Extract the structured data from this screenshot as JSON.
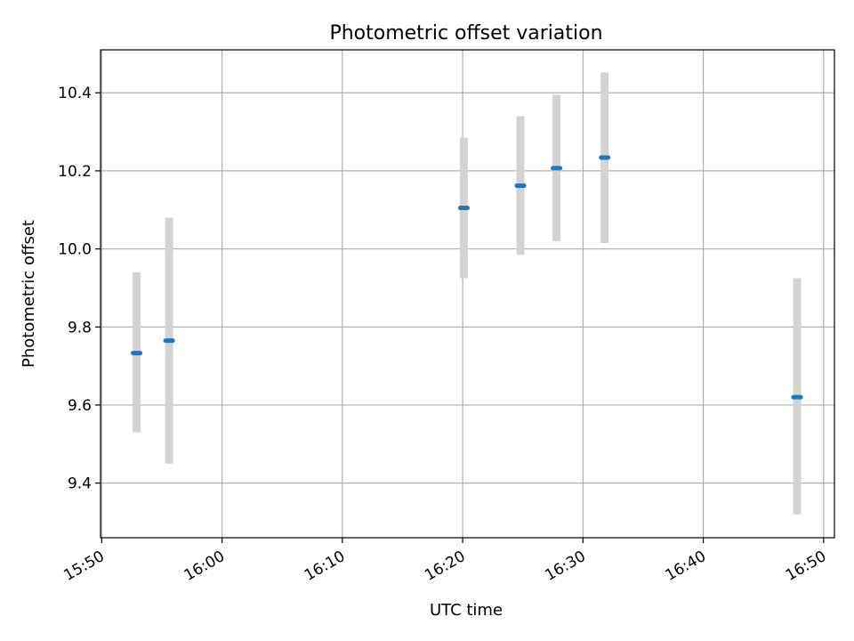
{
  "chart_data": {
    "type": "scatter",
    "title": "Photometric offset variation",
    "xlabel": "UTC time",
    "ylabel": "Photometric offset",
    "x_ticks": [
      "15:50",
      "16:00",
      "16:10",
      "16:20",
      "16:30",
      "16:40",
      "16:50"
    ],
    "y_ticks": [
      "9.4",
      "9.6",
      "9.8",
      "10.0",
      "10.2",
      "10.4"
    ],
    "xlim": [
      "15:49.9",
      "16:50.9"
    ],
    "ylim": [
      9.26,
      10.51
    ],
    "grid": true,
    "points": [
      {
        "x": "15:52.9",
        "y": 9.733,
        "yerr_low": 9.53,
        "yerr_high": 9.94
      },
      {
        "x": "15:55.6",
        "y": 9.765,
        "yerr_low": 9.45,
        "yerr_high": 10.08
      },
      {
        "x": "16:20.1",
        "y": 10.105,
        "yerr_low": 9.925,
        "yerr_high": 10.285
      },
      {
        "x": "16:24.8",
        "y": 10.162,
        "yerr_low": 9.985,
        "yerr_high": 10.34
      },
      {
        "x": "16:27.8",
        "y": 10.207,
        "yerr_low": 10.02,
        "yerr_high": 10.395
      },
      {
        "x": "16:31.8",
        "y": 10.234,
        "yerr_low": 10.015,
        "yerr_high": 10.452
      },
      {
        "x": "16:47.8",
        "y": 9.62,
        "yerr_low": 9.32,
        "yerr_high": 9.925
      }
    ],
    "point_color": "#1f77b4",
    "errorbar_color": "#d3d3d3"
  }
}
